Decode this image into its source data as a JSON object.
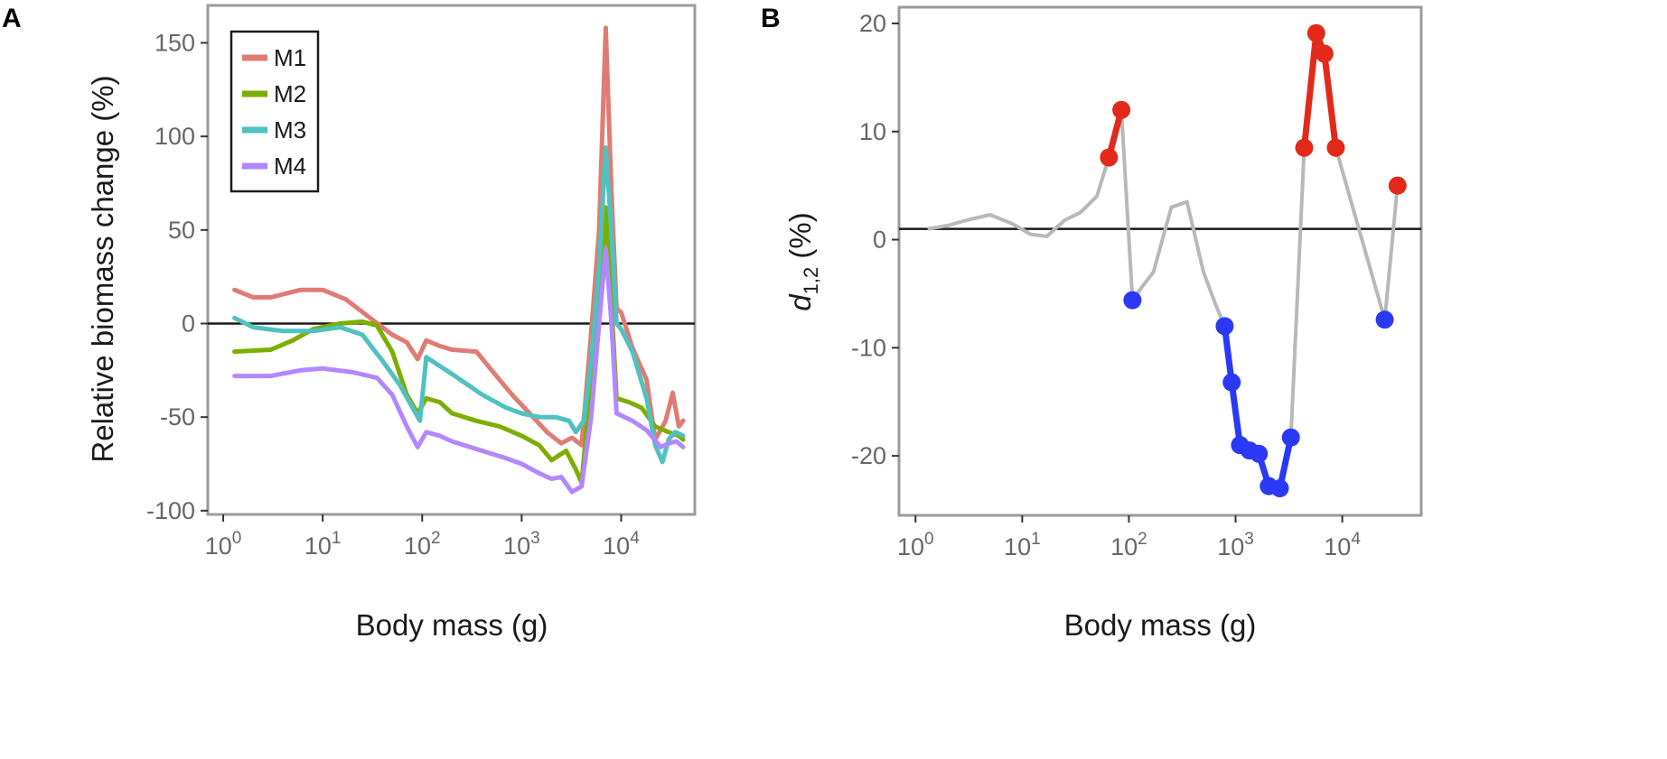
{
  "figure": {
    "panels": [
      "A",
      "B"
    ]
  },
  "chart_data": [
    {
      "panel": "A",
      "type": "line",
      "xscale": "log10",
      "xlabel": "Body mass (g)",
      "ylabel": "Relative biomass change (%)",
      "xlim": [
        0.7,
        55000
      ],
      "ylim": [
        -102,
        170
      ],
      "xticks": [
        {
          "base": "10",
          "exp": "0",
          "value": 1
        },
        {
          "base": "10",
          "exp": "1",
          "value": 10
        },
        {
          "base": "10",
          "exp": "2",
          "value": 100
        },
        {
          "base": "10",
          "exp": "3",
          "value": 1000
        },
        {
          "base": "10",
          "exp": "4",
          "value": 10000
        }
      ],
      "yticks": [
        {
          "label": "150",
          "value": 150
        },
        {
          "label": "100",
          "value": 100
        },
        {
          "label": "50",
          "value": 50
        },
        {
          "label": "0",
          "value": 0
        },
        {
          "label": "-50",
          "value": -50
        },
        {
          "label": "-100",
          "value": -100
        }
      ],
      "hline": 0,
      "legend_position": "top-left",
      "series": [
        {
          "name": "M1",
          "color": "#e07b73",
          "points": [
            [
              1.3,
              18
            ],
            [
              2,
              14
            ],
            [
              3,
              14
            ],
            [
              6,
              18
            ],
            [
              10,
              18
            ],
            [
              17,
              13
            ],
            [
              30,
              3
            ],
            [
              50,
              -6
            ],
            [
              70,
              -10
            ],
            [
              90,
              -19
            ],
            [
              110,
              -9
            ],
            [
              150,
              -12
            ],
            [
              200,
              -14
            ],
            [
              350,
              -15
            ],
            [
              500,
              -25
            ],
            [
              800,
              -38
            ],
            [
              1200,
              -48
            ],
            [
              1800,
              -58
            ],
            [
              2500,
              -64
            ],
            [
              3200,
              -61
            ],
            [
              4000,
              -65
            ],
            [
              5000,
              -5
            ],
            [
              6000,
              50
            ],
            [
              7000,
              158
            ],
            [
              8000,
              70
            ],
            [
              9000,
              8
            ],
            [
              10000,
              6
            ],
            [
              13000,
              -13
            ],
            [
              18000,
              -30
            ],
            [
              22000,
              -62
            ],
            [
              28000,
              -52
            ],
            [
              33000,
              -37
            ],
            [
              38000,
              -55
            ],
            [
              42000,
              -52
            ]
          ]
        },
        {
          "name": "M2",
          "color": "#7cae00",
          "points": [
            [
              1.3,
              -15
            ],
            [
              3,
              -14
            ],
            [
              5,
              -9
            ],
            [
              8,
              -3
            ],
            [
              15,
              0
            ],
            [
              25,
              1
            ],
            [
              35,
              -1
            ],
            [
              50,
              -15
            ],
            [
              70,
              -38
            ],
            [
              90,
              -48
            ],
            [
              110,
              -40
            ],
            [
              150,
              -42
            ],
            [
              200,
              -48
            ],
            [
              350,
              -52
            ],
            [
              600,
              -55
            ],
            [
              1000,
              -60
            ],
            [
              1500,
              -65
            ],
            [
              2000,
              -73
            ],
            [
              2800,
              -68
            ],
            [
              3500,
              -78
            ],
            [
              4000,
              -85
            ],
            [
              5000,
              -30
            ],
            [
              6000,
              10
            ],
            [
              7000,
              62
            ],
            [
              8000,
              10
            ],
            [
              9000,
              -40
            ],
            [
              12000,
              -42
            ],
            [
              16000,
              -45
            ],
            [
              22000,
              -55
            ],
            [
              30000,
              -58
            ],
            [
              38000,
              -60
            ],
            [
              42000,
              -62
            ]
          ]
        },
        {
          "name": "M3",
          "color": "#4fc1c0",
          "points": [
            [
              1.3,
              3
            ],
            [
              2,
              -2
            ],
            [
              4,
              -4
            ],
            [
              8,
              -4
            ],
            [
              15,
              -2
            ],
            [
              25,
              -6
            ],
            [
              40,
              -20
            ],
            [
              60,
              -33
            ],
            [
              80,
              -45
            ],
            [
              95,
              -52
            ],
            [
              110,
              -18
            ],
            [
              200,
              -27
            ],
            [
              400,
              -38
            ],
            [
              700,
              -45
            ],
            [
              1000,
              -48
            ],
            [
              1500,
              -50
            ],
            [
              2200,
              -50
            ],
            [
              3000,
              -52
            ],
            [
              3500,
              -58
            ],
            [
              4200,
              -52
            ],
            [
              5000,
              -20
            ],
            [
              6000,
              30
            ],
            [
              7000,
              94
            ],
            [
              8000,
              50
            ],
            [
              9000,
              0
            ],
            [
              10000,
              -3
            ],
            [
              13000,
              -15
            ],
            [
              18000,
              -40
            ],
            [
              22000,
              -65
            ],
            [
              26000,
              -74
            ],
            [
              30000,
              -62
            ],
            [
              35000,
              -58
            ],
            [
              42000,
              -60
            ]
          ]
        },
        {
          "name": "M4",
          "color": "#b388ff",
          "points": [
            [
              1.3,
              -28
            ],
            [
              3,
              -28
            ],
            [
              6,
              -25
            ],
            [
              10,
              -24
            ],
            [
              20,
              -26
            ],
            [
              35,
              -29
            ],
            [
              50,
              -38
            ],
            [
              70,
              -55
            ],
            [
              90,
              -66
            ],
            [
              110,
              -58
            ],
            [
              150,
              -60
            ],
            [
              200,
              -63
            ],
            [
              400,
              -68
            ],
            [
              700,
              -72
            ],
            [
              1000,
              -75
            ],
            [
              1500,
              -80
            ],
            [
              2000,
              -83
            ],
            [
              2500,
              -82
            ],
            [
              3200,
              -90
            ],
            [
              4000,
              -87
            ],
            [
              5000,
              -50
            ],
            [
              6000,
              0
            ],
            [
              7000,
              40
            ],
            [
              8000,
              0
            ],
            [
              9000,
              -48
            ],
            [
              13000,
              -52
            ],
            [
              18000,
              -57
            ],
            [
              25000,
              -66
            ],
            [
              30000,
              -64
            ],
            [
              36000,
              -63
            ],
            [
              42000,
              -66
            ]
          ]
        }
      ]
    },
    {
      "panel": "B",
      "type": "line",
      "xscale": "log10",
      "xlabel": "Body mass (g)",
      "ylabel": "d",
      "ylabel_subscript": "1,2",
      "ylabel_suffix": " (%)",
      "xlim": [
        0.7,
        55000
      ],
      "ylim": [
        -25.5,
        21.5
      ],
      "xticks": [
        {
          "base": "10",
          "exp": "0",
          "value": 1
        },
        {
          "base": "10",
          "exp": "1",
          "value": 10
        },
        {
          "base": "10",
          "exp": "2",
          "value": 100
        },
        {
          "base": "10",
          "exp": "3",
          "value": 1000
        },
        {
          "base": "10",
          "exp": "4",
          "value": 10000
        }
      ],
      "yticks": [
        {
          "label": "20",
          "value": 20
        },
        {
          "label": "10",
          "value": 10
        },
        {
          "label": "0",
          "value": 0
        },
        {
          "label": "-10",
          "value": -10
        },
        {
          "label": "-20",
          "value": -20
        }
      ],
      "hline": 1,
      "background_series": {
        "color": "#b8b8b8",
        "points": [
          [
            1.3,
            1
          ],
          [
            2,
            1.3
          ],
          [
            3,
            1.8
          ],
          [
            5,
            2.3
          ],
          [
            8,
            1.5
          ],
          [
            12,
            0.5
          ],
          [
            17,
            0.3
          ],
          [
            25,
            1.8
          ],
          [
            35,
            2.5
          ],
          [
            50,
            4
          ],
          [
            65,
            7.6
          ],
          [
            85,
            12
          ],
          [
            108,
            -5.6
          ],
          [
            130,
            -4.5
          ],
          [
            170,
            -3
          ],
          [
            250,
            3
          ],
          [
            350,
            3.5
          ],
          [
            500,
            -3
          ],
          [
            650,
            -6
          ],
          [
            790,
            -8
          ],
          [
            920,
            -13.2
          ],
          [
            1100,
            -19
          ],
          [
            1350,
            -19.5
          ],
          [
            1650,
            -19.8
          ],
          [
            2050,
            -22.8
          ],
          [
            2600,
            -23
          ],
          [
            3300,
            -18.3
          ],
          [
            4400,
            8.5
          ],
          [
            5700,
            19.1
          ],
          [
            6800,
            17.2
          ],
          [
            8700,
            8.5
          ],
          [
            25000,
            -7.4
          ],
          [
            33000,
            5
          ]
        ]
      },
      "highlight_segments": [
        {
          "label": "positive",
          "color": "#e32a1a",
          "points": [
            [
              65,
              7.6
            ],
            [
              85,
              12
            ]
          ]
        },
        {
          "label": "negative",
          "color": "#2a39f5",
          "points": [
            [
              108,
              -5.6
            ]
          ]
        },
        {
          "label": "negative",
          "color": "#2a39f5",
          "points": [
            [
              790,
              -8
            ],
            [
              920,
              -13.2
            ],
            [
              1100,
              -19
            ],
            [
              1350,
              -19.5
            ],
            [
              1650,
              -19.8
            ],
            [
              2050,
              -22.8
            ],
            [
              2600,
              -23
            ],
            [
              3300,
              -18.3
            ]
          ]
        },
        {
          "label": "positive",
          "color": "#e32a1a",
          "points": [
            [
              4400,
              8.5
            ],
            [
              5700,
              19.1
            ],
            [
              6800,
              17.2
            ],
            [
              8700,
              8.5
            ]
          ]
        },
        {
          "label": "negative",
          "color": "#2a39f5",
          "points": [
            [
              25000,
              -7.4
            ]
          ]
        },
        {
          "label": "positive",
          "color": "#e32a1a",
          "points": [
            [
              33000,
              5
            ]
          ]
        }
      ]
    }
  ]
}
